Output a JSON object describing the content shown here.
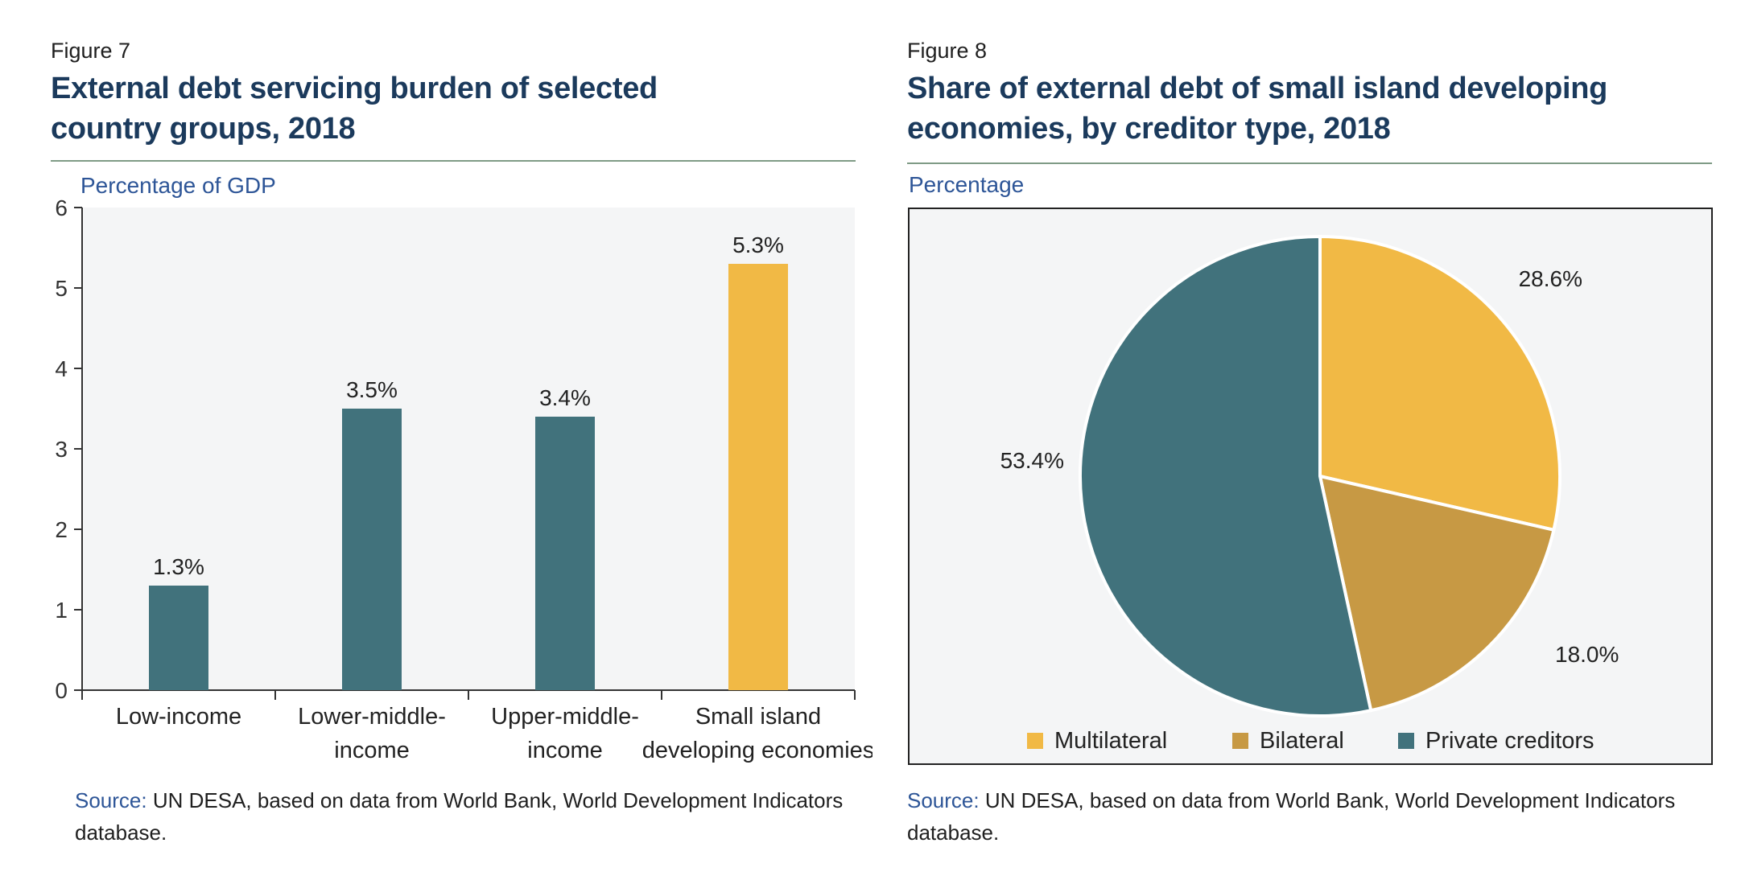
{
  "figures": [
    {
      "label": "Figure 7",
      "title_line1": "External debt servicing burden of selected",
      "title_line2": "country groups, 2018",
      "unit": "Percentage of GDP",
      "source_key": "Source:",
      "source_line1": "UN DESA, based on data from World Bank, World Development Indicators",
      "source_line2": "database."
    },
    {
      "label": "Figure 8",
      "title_line1": "Share of external debt of small island developing",
      "title_line2": "economies, by creditor type, 2018",
      "unit": "Percentage",
      "source_key": "Source:",
      "source_line1": "UN DESA, based on data from World Bank, World Development Indicators",
      "source_line2": "database."
    }
  ],
  "chart_data": [
    {
      "type": "bar",
      "categories": [
        [
          "Low-income"
        ],
        [
          "Lower-middle-",
          "income"
        ],
        [
          "Upper-middle-",
          "income"
        ],
        [
          "Small island",
          "developing economies"
        ]
      ],
      "values": [
        1.3,
        3.5,
        3.4,
        5.3
      ],
      "value_labels": [
        "1.3%",
        "3.5%",
        "3.4%",
        "5.3%"
      ],
      "bar_colors": [
        "#41727c",
        "#41727c",
        "#41727c",
        "#f1b945"
      ],
      "ylabel": "Percentage of GDP",
      "ylim": [
        0,
        6
      ],
      "yticks": [
        0,
        1,
        2,
        3,
        4,
        5,
        6
      ],
      "grid": false,
      "background": "#f4f5f6"
    },
    {
      "type": "pie",
      "slices": [
        {
          "name": "Multilateral",
          "value": 28.6,
          "label": "28.6%",
          "color": "#f1b945"
        },
        {
          "name": "Bilateral",
          "value": 18.0,
          "label": "18.0%",
          "color": "#c79944"
        },
        {
          "name": "Private creditors",
          "value": 53.4,
          "label": "53.4%",
          "color": "#41727c"
        }
      ],
      "start_angle": "12 o'clock",
      "direction": "clockwise",
      "legend_position": "bottom",
      "background": "#f4f5f6"
    }
  ]
}
